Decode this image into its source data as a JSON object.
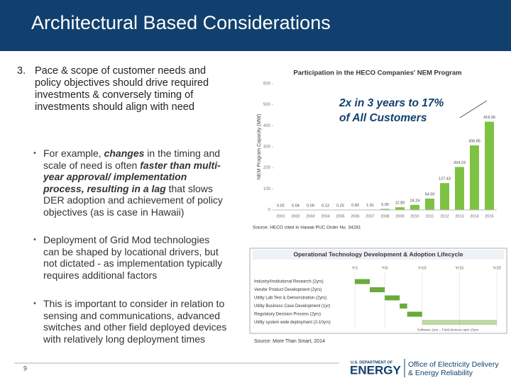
{
  "header": {
    "title": "Architectural Based Considerations"
  },
  "point": {
    "number": "3.",
    "text": "Pace & scope of customer needs and policy objectives should drive required investments & conversely timing of investments should align with need"
  },
  "bullets": [
    {
      "segments": [
        {
          "text": "For example, ",
          "style": "normal"
        },
        {
          "text": "changes",
          "style": "bold-italic"
        },
        {
          "text": " in the timing and scale of need is often ",
          "style": "normal"
        },
        {
          "text": "faster than multi-year approval/ implementation process, resulting in a lag",
          "style": "bold-italic"
        },
        {
          "text": " that slows DER adoption and achievement of policy objectives (as is case in Hawaii)",
          "style": "normal"
        }
      ]
    },
    {
      "segments": [
        {
          "text": "Deployment of Grid Mod technologies can be shaped by locational drivers, but not dictated - as implementation typically requires additional factors",
          "style": "normal"
        }
      ]
    },
    {
      "segments": [
        {
          "text": "This is important to consider in relation to sensing and communications, advanced switches and other field deployed devices with relatively long deployment times",
          "style": "normal"
        }
      ]
    }
  ],
  "chart_data": {
    "type": "bar",
    "title": "Participation in the HECO Companies' NEM Program",
    "ylabel": "NEM Program Capacity (MW)",
    "categories": [
      "2001",
      "2002",
      "2003",
      "2004",
      "2005",
      "2006",
      "2007",
      "2008",
      "2009",
      "2010",
      "2011",
      "2012",
      "2013",
      "2014",
      "2015"
    ],
    "values": [
      0.02,
      0.04,
      0.09,
      0.13,
      0.25,
      0.83,
      1.91,
      5,
      12.8,
      24.24,
      54,
      127.43,
      204.23,
      306.85,
      419.36
    ],
    "value_labels": [
      "0.02",
      "0.04",
      "0.09",
      "0.13",
      "0.25",
      "0.83",
      "1.91",
      "5.00",
      "12.80",
      "24.24",
      "54.00",
      "127.43",
      "204.23",
      "306.85",
      "419.36"
    ],
    "color": "#7dc242",
    "ylim": [
      0,
      600
    ],
    "yticks": [
      0,
      100,
      200,
      300,
      400,
      500,
      600
    ],
    "annotation": [
      "2x in 3 years to 17%",
      "of All Customers"
    ],
    "source": "Source: HECO cited in Hawaii PUC Order No. 34281"
  },
  "lifecycle": {
    "title": "Operational Technology Development & Adoption Lifecycle",
    "xlim": [
      1,
      20
    ],
    "columns": [
      {
        "value": 1,
        "label": "Yr1"
      },
      {
        "value": 5,
        "label": "Yr5"
      },
      {
        "value": 10,
        "label": "Yr10"
      },
      {
        "value": 15,
        "label": "Yr15"
      },
      {
        "value": 20,
        "label": "Yr20"
      }
    ],
    "color": "#6aaa3a",
    "rows": [
      {
        "label": "Industry/Institutional Research (2yrs)",
        "start": 1,
        "end": 3
      },
      {
        "label": "Vendor Product Development (2yrs)",
        "start": 3,
        "end": 5
      },
      {
        "label": "Utility Lab Test & Demonstration (2yrs)",
        "start": 5,
        "end": 7
      },
      {
        "label": "Utility Business Case Development (1yr)",
        "start": 7,
        "end": 8
      },
      {
        "label": "Regulatory Decision Process (2yrs)",
        "start": 8,
        "end": 10
      },
      {
        "label": "Utility system wide deployment (2-10yrs)",
        "start": 10,
        "end": 20
      }
    ],
    "note": "Software 2yrs – Field devices upto 15yrs",
    "source": "Source: More Than Smart, 2014"
  },
  "footer": {
    "page": "9",
    "agency": "U.S. DEPARTMENT OF",
    "agency_name": "ENERGY",
    "office": "Office of Electricity Delivery",
    "office2": "& Energy Reliability"
  }
}
